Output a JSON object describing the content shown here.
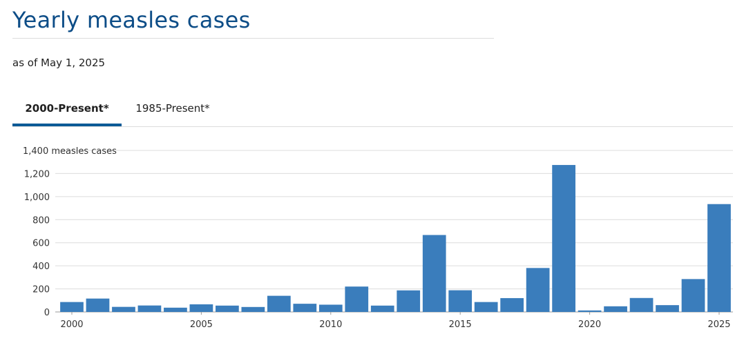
{
  "header": {
    "title": "Yearly measles cases",
    "subtitle": "as of May 1, 2025"
  },
  "tabs": [
    {
      "label": "2000-Present*",
      "active": true
    },
    {
      "label": "1985-Present*",
      "active": false
    }
  ],
  "colors": {
    "bar": "#3a7dbc",
    "title": "#0d4d87",
    "active_tab": "#0b5a96",
    "grid": "#dcdcdc"
  },
  "chart_data": {
    "type": "bar",
    "title": "",
    "xlabel": "",
    "ylabel": "measles cases",
    "ylim": [
      0,
      1400
    ],
    "yticks": [
      0,
      200,
      400,
      600,
      800,
      1000,
      1200,
      1400
    ],
    "ytick_labels": [
      "0",
      "200",
      "400",
      "600",
      "800",
      "1,000",
      "1,200",
      "1,400"
    ],
    "ytick_top_label": "1,400 measles cases",
    "xtick_labels": [
      "2000",
      "2005",
      "2010",
      "2015",
      "2020",
      "2025"
    ],
    "grid": true,
    "categories": [
      "2000",
      "2001",
      "2002",
      "2003",
      "2004",
      "2005",
      "2006",
      "2007",
      "2008",
      "2009",
      "2010",
      "2011",
      "2012",
      "2013",
      "2014",
      "2015",
      "2016",
      "2017",
      "2018",
      "2019",
      "2020",
      "2021",
      "2022",
      "2023",
      "2024",
      "2025"
    ],
    "values": [
      86,
      116,
      44,
      56,
      37,
      66,
      55,
      43,
      140,
      71,
      63,
      220,
      55,
      187,
      667,
      188,
      86,
      120,
      381,
      1274,
      13,
      49,
      121,
      59,
      285,
      935
    ]
  }
}
